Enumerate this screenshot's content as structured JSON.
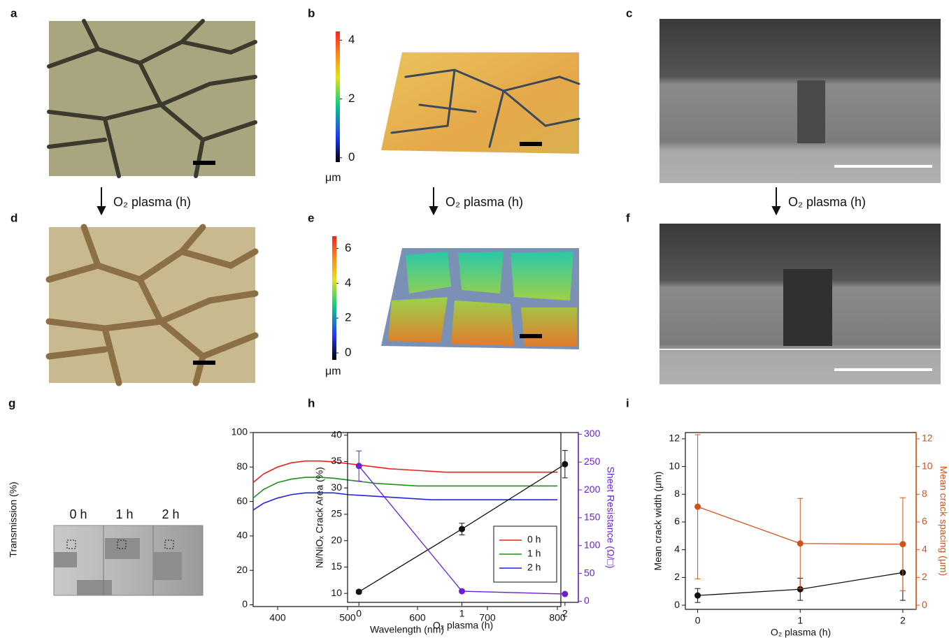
{
  "panels": [
    "a",
    "b",
    "c",
    "d",
    "e",
    "f",
    "g",
    "h",
    "i"
  ],
  "arrows": [
    {
      "label": "O₂ plasma (h)"
    },
    {
      "label": "O₂ plasma (h)"
    },
    {
      "label": "O₂ plasma (h)"
    }
  ],
  "colorbars": [
    {
      "lim": [
        -0.15,
        4.3
      ],
      "ticks": [
        0,
        2,
        4
      ],
      "unit": "μm"
    },
    {
      "lim": [
        -0.4,
        6.7
      ],
      "ticks": [
        0,
        2,
        4,
        6
      ],
      "unit": "μm"
    }
  ],
  "chart_data": [
    {
      "type": "line",
      "xlabel": "Wavelength (nm)",
      "ylabel": "Transmission (%)",
      "x": [
        365,
        380,
        400,
        420,
        440,
        460,
        480,
        500,
        520,
        540,
        560,
        580,
        600,
        620,
        640,
        660,
        680,
        700,
        720,
        740,
        760,
        780,
        800
      ],
      "series": [
        {
          "name": "0 h",
          "color": "#e8231f",
          "values": [
            71,
            76,
            80,
            82.5,
            83.5,
            83.5,
            83,
            82,
            81,
            80,
            79,
            78.5,
            78,
            77.5,
            77,
            77,
            77,
            77,
            77,
            77,
            77,
            77,
            77
          ]
        },
        {
          "name": "1 h",
          "color": "#1f8f1f",
          "values": [
            62,
            67,
            71,
            73,
            74,
            74,
            73.5,
            72.5,
            71.5,
            70.5,
            70,
            69.5,
            69,
            69,
            69,
            69,
            69,
            69,
            69,
            69,
            69,
            69,
            69
          ]
        },
        {
          "name": "2 h",
          "color": "#2323e0",
          "values": [
            55,
            59,
            62,
            64,
            65,
            65,
            65,
            64,
            63.5,
            63,
            62.5,
            62,
            61.5,
            61,
            61,
            61,
            61,
            61,
            61,
            61,
            61,
            61,
            61
          ]
        }
      ],
      "xlim": [
        365,
        805
      ],
      "xticks": [
        400,
        500,
        600,
        700,
        800
      ],
      "ylim": [
        -1,
        100
      ],
      "yticks": [
        0,
        20,
        40,
        60,
        80,
        100
      ],
      "legend": "lower right",
      "inset_labels": [
        "0 h",
        "1 h",
        "2 h"
      ]
    },
    {
      "type": "line",
      "xlabel": "O₂ plasma (h)",
      "ylabel": "Ni/NiOₓ Crack Area (%)",
      "y2label": "Sheet Resistance (Ω/□)",
      "x": [
        0,
        1,
        2
      ],
      "series": [
        {
          "color": "#111111",
          "values": [
            10.3,
            22.2,
            34.5
          ],
          "errors": [
            0.3,
            1.1,
            2.6
          ]
        },
        {
          "color": "#6a1fd0",
          "values": [
            243,
            18,
            13
          ],
          "errors": [
            27,
            1,
            1
          ],
          "axis": "y2"
        }
      ],
      "xlim": [
        -0.11,
        2.13
      ],
      "xticks": [
        0,
        1,
        2
      ],
      "ylim": [
        8.3,
        40.5
      ],
      "yticks": [
        10,
        15,
        20,
        25,
        30,
        35,
        40
      ],
      "y2lim": [
        -2,
        303
      ],
      "y2ticks": [
        0,
        50,
        100,
        150,
        200,
        250,
        300
      ],
      "y2_color": "#6a1fd0"
    },
    {
      "type": "line",
      "xlabel": "O₂ plasma (h)",
      "ylabel": "Mean crack width (μm)",
      "y2label": "Mean crack spacing (μm)",
      "x": [
        0,
        1,
        2
      ],
      "series": [
        {
          "color": "#111111",
          "values": [
            0.7,
            1.15,
            2.35
          ],
          "errors": [
            0.5,
            0.8,
            2.0
          ]
        },
        {
          "color": "#d2521c",
          "values": [
            7.1,
            4.45,
            4.4
          ],
          "errors": [
            5.2,
            3.25,
            3.35
          ],
          "axis": "y2"
        }
      ],
      "xlim": [
        -0.12,
        2.13
      ],
      "xticks": [
        0,
        1,
        2
      ],
      "ylim": [
        -0.3,
        12.45
      ],
      "yticks": [
        0,
        2,
        4,
        6,
        8,
        10,
        12
      ],
      "y2lim": [
        -0.3,
        12.45
      ],
      "y2ticks": [
        0,
        2,
        4,
        6,
        8,
        10,
        12
      ],
      "y2_color": "#d2521c"
    }
  ]
}
